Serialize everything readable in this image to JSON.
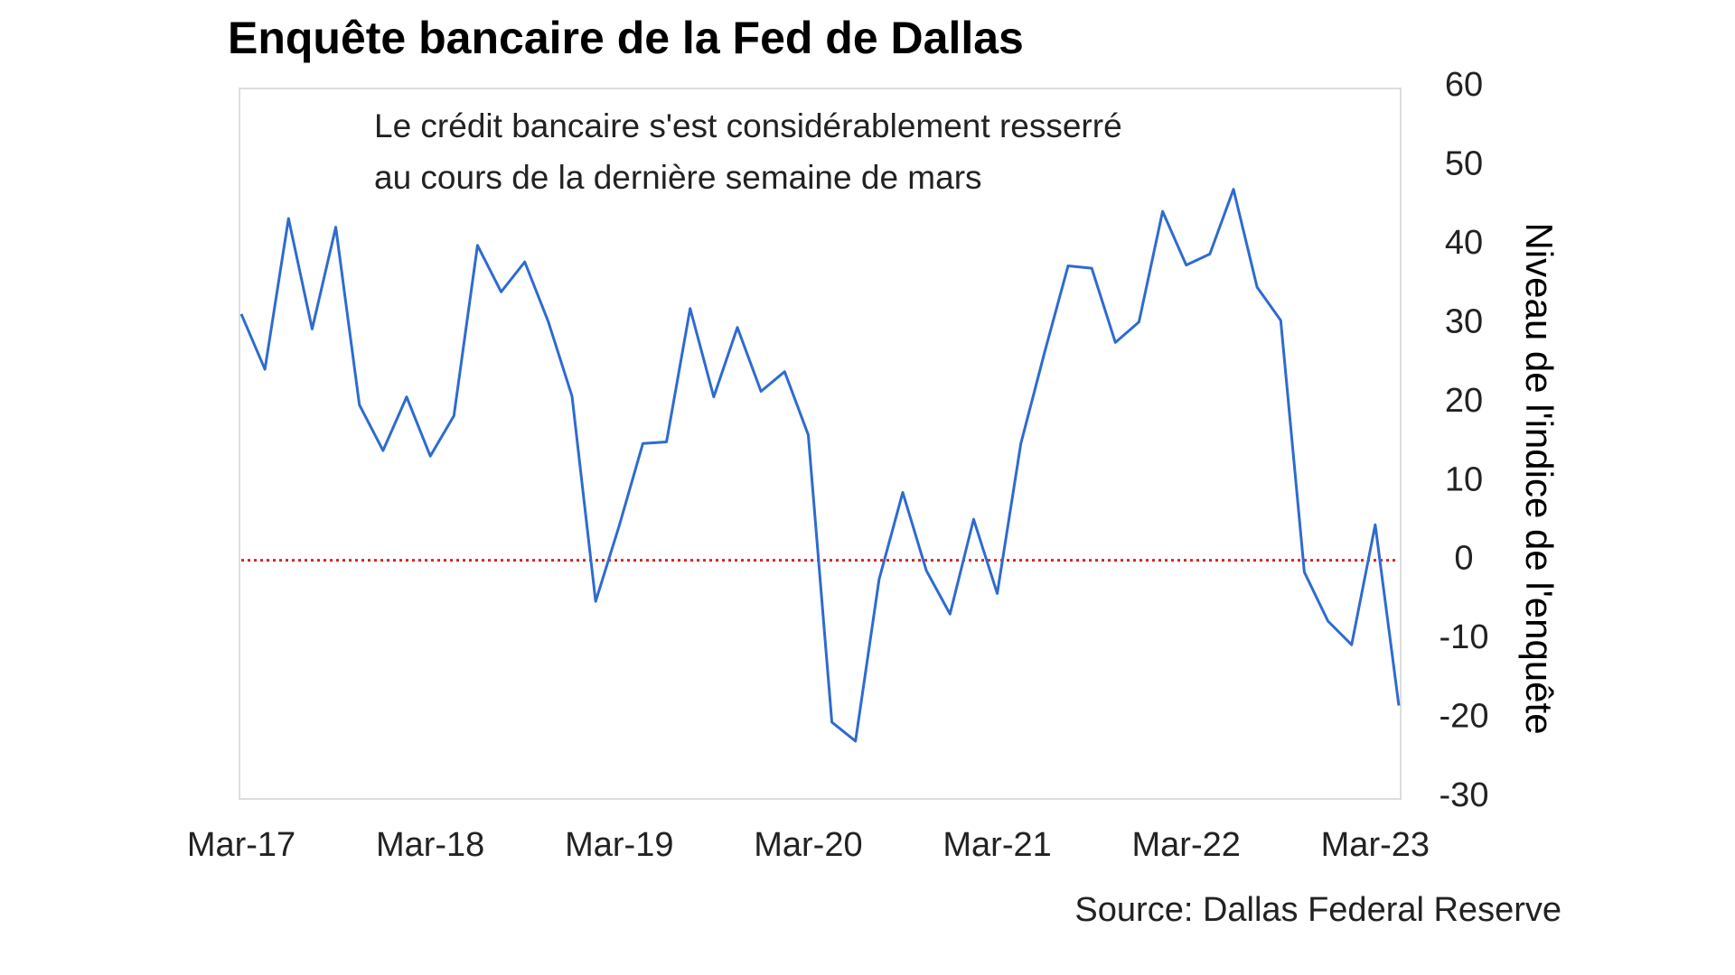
{
  "chart_data": {
    "type": "line",
    "title": "Enquête bancaire de la Fed de Dallas",
    "annotation": [
      "Le crédit bancaire s'est considérablement resserré",
      "au cours de la dernière semaine de mars"
    ],
    "y_label": "Niveau de l'indice de l'enquête",
    "source": "Source: Dallas Federal Reserve",
    "x": [
      0,
      1,
      2,
      3,
      4,
      5,
      6,
      7,
      8,
      9,
      10,
      11,
      12,
      13,
      14,
      15,
      16,
      17,
      18,
      19,
      20,
      21,
      22,
      23,
      24,
      25,
      26,
      27,
      28,
      29,
      30,
      31,
      32,
      33,
      34,
      35,
      36,
      37,
      38,
      39,
      40,
      41,
      42,
      43,
      44,
      45,
      46,
      47,
      48,
      49
    ],
    "series": [
      {
        "color": "#2e6bd0",
        "values": [
          31.2,
          24.2,
          43.3,
          29.3,
          42.2,
          19.7,
          13.9,
          20.7,
          13.2,
          18.3,
          39.9,
          34,
          37.8,
          30.2,
          20.8,
          -5.2,
          4.4,
          14.8,
          15,
          31.9,
          20.7,
          29.5,
          21.4,
          23.9,
          15.9,
          -20.5,
          -22.9,
          -2.4,
          8.6,
          -1.3,
          -6.8,
          5.2,
          -4.2,
          14.8,
          26.3,
          37.3,
          37,
          27.6,
          30.2,
          44.2,
          37.4,
          38.8,
          47,
          34.6,
          30.4,
          -1.5,
          -7.7,
          -10.7,
          4.5,
          -18.4
        ]
      }
    ],
    "xlim": [
      0,
      49
    ],
    "xticks": [
      {
        "value": 0,
        "label": "Mar-17"
      },
      {
        "value": 8,
        "label": "Mar-18"
      },
      {
        "value": 16,
        "label": "Mar-19"
      },
      {
        "value": 24,
        "label": "Mar-20"
      },
      {
        "value": 32,
        "label": "Mar-21"
      },
      {
        "value": 40,
        "label": "Mar-22"
      },
      {
        "value": 48,
        "label": "Mar-23"
      }
    ],
    "ylim": [
      -30,
      60
    ],
    "yticks": [
      -30,
      -20,
      -10,
      0,
      10,
      20,
      30,
      40,
      50,
      60
    ],
    "reference_line": {
      "value": 0,
      "color": "#e0201b"
    }
  }
}
